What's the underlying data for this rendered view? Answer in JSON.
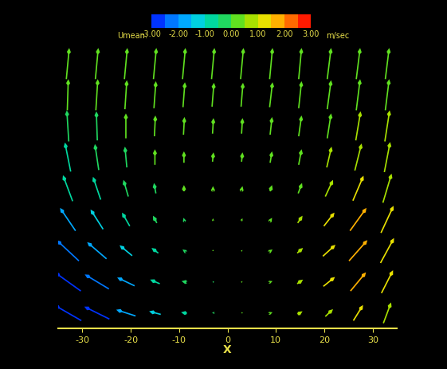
{
  "chart_data": {
    "type": "quiver",
    "x": [
      -33,
      -27,
      -21,
      -15,
      -9,
      -3,
      3,
      9,
      15,
      21,
      27,
      33
    ],
    "y": [
      3,
      9,
      15,
      21,
      27,
      33,
      39,
      45,
      51
    ],
    "u": [
      [
        -2.8,
        -2.6,
        -2.0,
        -1.2,
        -0.6,
        -0.2,
        0.1,
        0.3,
        0.5,
        0.8,
        1.0,
        0.8
      ],
      [
        -2.7,
        -2.5,
        -1.8,
        -1.0,
        -0.5,
        -0.1,
        0.1,
        0.3,
        0.6,
        1.2,
        1.6,
        1.2
      ],
      [
        -2.3,
        -2.0,
        -1.3,
        -0.7,
        -0.3,
        0.0,
        0.1,
        0.3,
        0.6,
        1.3,
        1.9,
        1.4
      ],
      [
        -1.6,
        -1.3,
        -0.8,
        -0.4,
        -0.1,
        0.0,
        0.1,
        0.2,
        0.5,
        1.1,
        1.7,
        1.3
      ],
      [
        -1.0,
        -0.8,
        -0.5,
        -0.2,
        0.0,
        0.0,
        0.1,
        0.2,
        0.4,
        0.8,
        1.1,
        0.9
      ],
      [
        -0.6,
        -0.4,
        -0.2,
        0.0,
        0.0,
        0.1,
        0.1,
        0.2,
        0.3,
        0.5,
        0.7,
        0.6
      ],
      [
        -0.2,
        -0.1,
        0.0,
        0.1,
        0.1,
        0.1,
        0.1,
        0.2,
        0.3,
        0.4,
        0.5,
        0.5
      ],
      [
        0.1,
        0.2,
        0.2,
        0.2,
        0.2,
        0.2,
        0.2,
        0.3,
        0.3,
        0.4,
        0.4,
        0.4
      ],
      [
        0.3,
        0.3,
        0.3,
        0.3,
        0.3,
        0.3,
        0.3,
        0.3,
        0.3,
        0.4,
        0.4,
        0.4
      ]
    ],
    "v": [
      [
        1.5,
        1.2,
        0.6,
        0.3,
        0.1,
        0.0,
        0.0,
        0.1,
        0.3,
        0.7,
        1.5,
        2.0
      ],
      [
        1.8,
        1.4,
        0.8,
        0.4,
        0.1,
        0.1,
        0.1,
        0.1,
        0.4,
        0.9,
        1.8,
        2.2
      ],
      [
        2.0,
        1.6,
        1.0,
        0.5,
        0.2,
        0.1,
        0.1,
        0.2,
        0.5,
        1.1,
        2.0,
        2.4
      ],
      [
        2.2,
        1.9,
        1.3,
        0.7,
        0.3,
        0.2,
        0.2,
        0.3,
        0.7,
        1.3,
        2.2,
        2.6
      ],
      [
        2.5,
        2.2,
        1.6,
        1.0,
        0.6,
        0.4,
        0.4,
        0.6,
        1.0,
        1.6,
        2.4,
        2.8
      ],
      [
        2.8,
        2.5,
        2.0,
        1.5,
        1.1,
        0.9,
        0.9,
        1.1,
        1.5,
        2.0,
        2.6,
        2.9
      ],
      [
        3.0,
        2.8,
        2.4,
        2.0,
        1.7,
        1.5,
        1.5,
        1.7,
        2.0,
        2.4,
        2.8,
        3.0
      ],
      [
        3.0,
        3.0,
        2.8,
        2.6,
        2.4,
        2.3,
        2.3,
        2.4,
        2.6,
        2.8,
        3.0,
        3.0
      ],
      [
        3.0,
        3.0,
        3.0,
        3.0,
        3.0,
        3.0,
        3.0,
        3.0,
        3.0,
        3.0,
        3.0,
        3.0
      ]
    ],
    "xlim": [
      -35,
      35
    ],
    "ylim": [
      0,
      54
    ],
    "xticks": [
      -30,
      -20,
      -10,
      0,
      10,
      20,
      30
    ],
    "xlabel": "X",
    "tick_labels": "x",
    "colorbar": {
      "label": "Umean:",
      "unit": "m/sec",
      "range": [
        -3,
        3
      ],
      "ticks": [
        {
          "value": -3,
          "label": "-3.00"
        },
        {
          "value": -2,
          "label": "-2.00"
        },
        {
          "value": -1,
          "label": "-1.00"
        },
        {
          "value": 0,
          "label": "0.00"
        },
        {
          "value": 1,
          "label": "1.00"
        },
        {
          "value": 2,
          "label": "2.00"
        },
        {
          "value": 3,
          "label": "3.00"
        }
      ]
    }
  }
}
